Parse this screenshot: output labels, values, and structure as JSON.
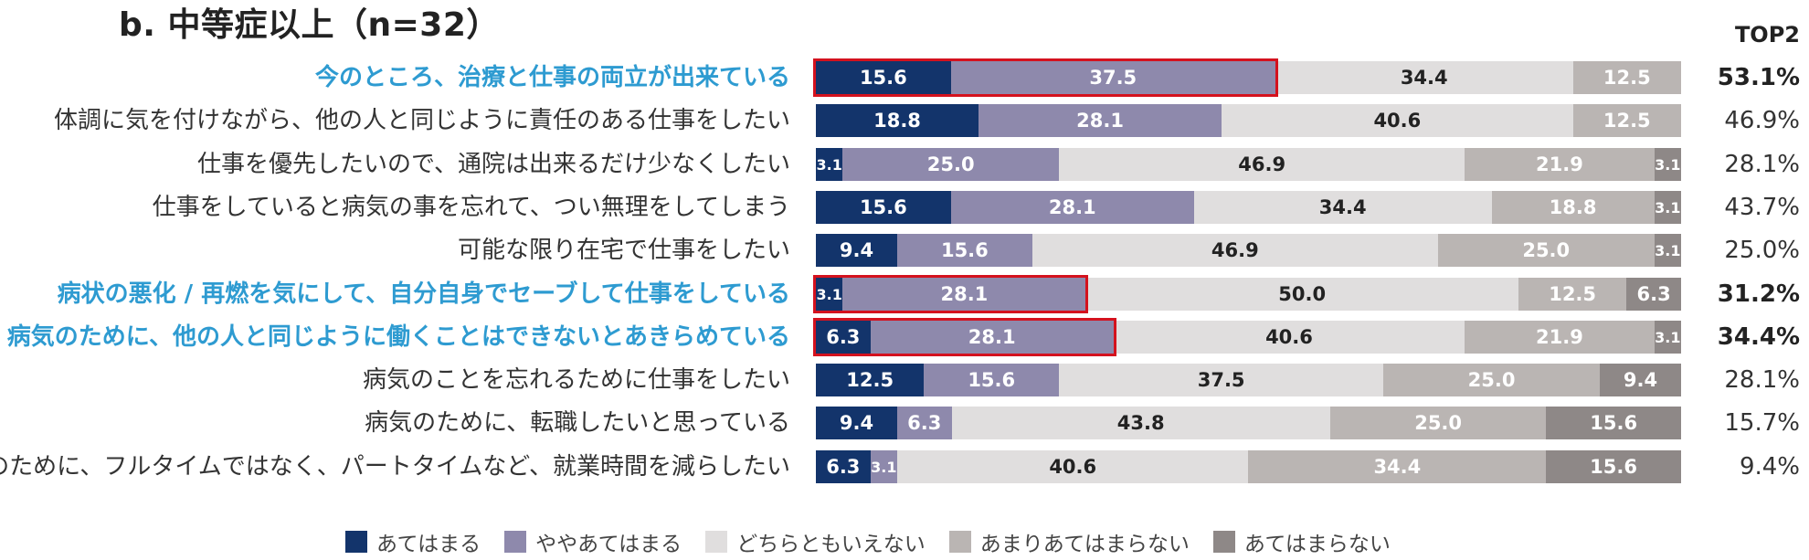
{
  "title": "b. 中等症以上（n=32）",
  "top2_header": "TOP2",
  "chart_data": {
    "type": "bar",
    "orientation": "horizontal",
    "stacked": true,
    "unit": "%",
    "categories": [
      "今のところ、治療と仕事の両立が出来ている",
      "体調に気を付けながら、他の人と同じように責任のある仕事をしたい",
      "仕事を優先したいので、通院は出来るだけ少なくしたい",
      "仕事をしていると病気の事を忘れて、つい無理をしてしまう",
      "可能な限り在宅で仕事をしたい",
      "病状の悪化 / 再燃を気にして、自分自身でセーブして仕事をしている",
      "病気のために、他の人と同じように働くことはできないとあきらめている",
      "病気のことを忘れるために仕事をしたい",
      "病気のために、転職したいと思っている",
      "病気のために、フルタイムではなく、パートタイムなど、就業時間を減らしたい"
    ],
    "highlighted": [
      true,
      false,
      false,
      false,
      false,
      true,
      true,
      false,
      false,
      false
    ],
    "series": [
      {
        "name": "あてはまる",
        "color": "#13346B",
        "values": [
          15.6,
          18.8,
          3.1,
          15.6,
          9.4,
          3.1,
          6.3,
          12.5,
          9.4,
          6.3
        ]
      },
      {
        "name": "ややあてはまる",
        "color": "#8E89AC",
        "values": [
          37.5,
          28.1,
          25.0,
          28.1,
          15.6,
          28.1,
          28.1,
          15.6,
          6.3,
          3.1
        ]
      },
      {
        "name": "どちらともいえない",
        "color": "#E0DEDE",
        "values": [
          34.4,
          40.6,
          46.9,
          34.4,
          46.9,
          50.0,
          40.6,
          37.5,
          43.8,
          40.6
        ]
      },
      {
        "name": "あまりあてはまらない",
        "color": "#BAB5B3",
        "values": [
          12.5,
          12.5,
          21.9,
          18.8,
          25.0,
          12.5,
          21.9,
          25.0,
          25.0,
          34.4
        ]
      },
      {
        "name": "あてはまらない",
        "color": "#8E8887",
        "values": [
          null,
          null,
          3.1,
          3.1,
          3.1,
          6.3,
          3.1,
          9.4,
          15.6,
          15.6
        ]
      }
    ],
    "top2": [
      "53.1%",
      "46.9%",
      "28.1%",
      "43.7%",
      "25.0%",
      "31.2%",
      "34.4%",
      "28.1%",
      "15.7%",
      "9.4%"
    ],
    "legend_position": "bottom"
  }
}
